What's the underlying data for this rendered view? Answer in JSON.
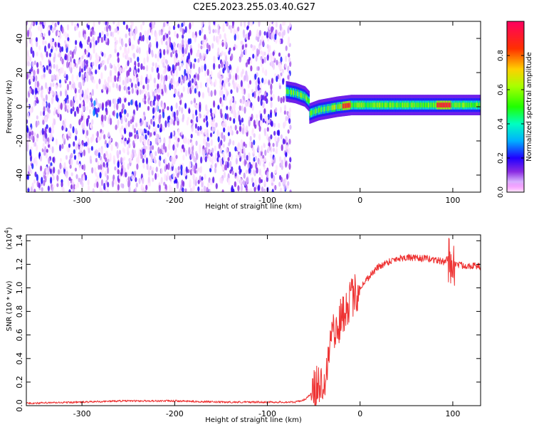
{
  "figure_title": "C2E5.2023.255.03.40.G27",
  "chart_data": [
    {
      "type": "heatmap",
      "xlabel": "Height of straight line (km)",
      "ylabel": "Frequency (Hz)",
      "xlim": [
        -360,
        130
      ],
      "ylim": [
        -50,
        50
      ],
      "x_ticks": [
        -300,
        -200,
        -100,
        0,
        100
      ],
      "y_ticks": [
        -40,
        -20,
        0,
        20,
        40
      ],
      "grid": false,
      "colorbar": {
        "label": "Normalized spectral amplitude",
        "range": [
          0,
          1
        ],
        "ticks": [
          0.0,
          0.2,
          0.4,
          0.6,
          0.8
        ],
        "colormap": "gist_rainbow"
      },
      "ridge": [
        {
          "x": -80,
          "y": 9
        },
        {
          "x": -70,
          "y": 8
        },
        {
          "x": -60,
          "y": 6
        },
        {
          "x": -55,
          "y": 3
        },
        {
          "x": -55,
          "y": -4
        },
        {
          "x": -45,
          "y": -2
        },
        {
          "x": -35,
          "y": -1
        },
        {
          "x": -25,
          "y": 0
        },
        {
          "x": -10,
          "y": 1
        },
        {
          "x": 0,
          "y": 1
        },
        {
          "x": 20,
          "y": 1
        },
        {
          "x": 60,
          "y": 1
        },
        {
          "x": 90,
          "y": 1
        },
        {
          "x": 130,
          "y": 1
        }
      ]
    },
    {
      "type": "line",
      "xlabel": "Height of straight line (km)",
      "ylabel": "SNR (10 * v/v)",
      "y_multiplier": "(x10",
      "y_multiplier_exp": "4",
      "y_multiplier_close": ")",
      "xlim": [
        -360,
        130
      ],
      "ylim": [
        0,
        1.45
      ],
      "x_ticks": [
        -300,
        -200,
        -100,
        0,
        100
      ],
      "y_ticks": [
        0.0,
        0.2,
        0.4,
        0.6,
        0.8,
        1.0,
        1.2,
        1.4
      ],
      "grid": false,
      "series_color": "#ee3333",
      "x": [
        -360,
        -300,
        -260,
        -200,
        -150,
        -100,
        -80,
        -70,
        -60,
        -50,
        -45,
        -40,
        -35,
        -32,
        -30,
        -28,
        -25,
        -20,
        -15,
        -10,
        -5,
        0,
        5,
        10,
        20,
        30,
        40,
        50,
        60,
        70,
        80,
        90,
        95,
        100,
        105,
        110,
        120,
        130
      ],
      "y": [
        0.02,
        0.03,
        0.04,
        0.04,
        0.03,
        0.03,
        0.03,
        0.03,
        0.05,
        0.12,
        0.18,
        0.2,
        0.35,
        0.6,
        0.8,
        0.55,
        0.65,
        0.75,
        0.85,
        0.9,
        0.95,
        1.0,
        1.05,
        1.1,
        1.18,
        1.22,
        1.25,
        1.26,
        1.25,
        1.25,
        1.24,
        1.22,
        1.25,
        1.2,
        1.2,
        1.19,
        1.19,
        1.18
      ]
    }
  ]
}
